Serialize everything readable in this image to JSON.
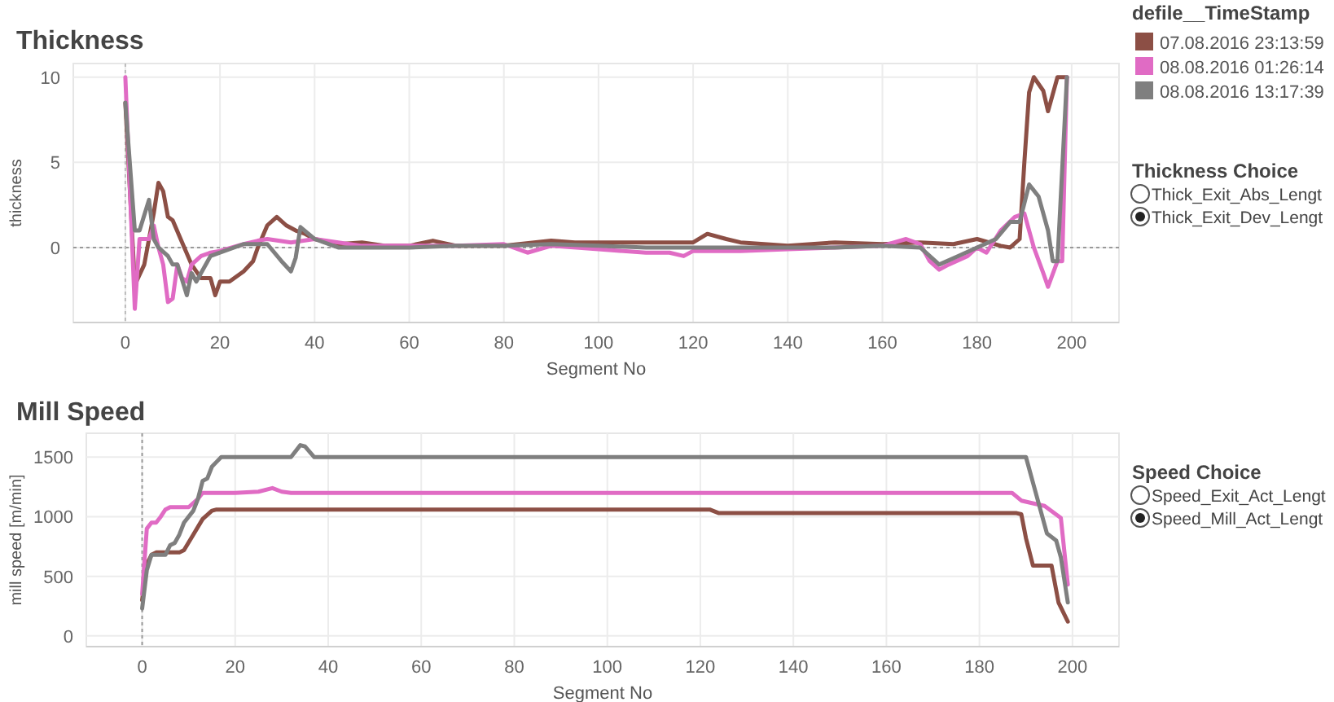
{
  "chart_data": [
    {
      "type": "line",
      "title": "Thickness",
      "xlabel": "Segment No",
      "ylabel": "thickness",
      "legend_title": "defile__TimeStamp",
      "legend": "top right",
      "grid": true,
      "line_style": "solid",
      "marker": "none",
      "xlim": [
        -11,
        210
      ],
      "xticks": [
        0,
        20,
        40,
        60,
        80,
        100,
        120,
        140,
        160,
        180,
        200
      ],
      "ylim": [
        -4.4,
        10.8
      ],
      "yticks": [
        0,
        5,
        10
      ],
      "ref_lines": [
        {
          "axis": "y",
          "value": 0,
          "color": "#999999",
          "line_style": "dotted"
        },
        {
          "axis": "x",
          "value": 0,
          "color": "#bbbbbb",
          "line_style": "dotted"
        }
      ],
      "annotations": [
        "Thickness Choice",
        "Thick_Exit_Abs_Lengt",
        "Thick_Exit_Dev_Lengt"
      ],
      "series": [
        {
          "name": "07.08.2016 23:13:59",
          "color": "#8c4f45",
          "x": [
            0,
            2,
            4,
            6,
            7,
            8,
            9,
            10,
            12,
            14,
            16,
            18,
            19,
            20,
            22,
            25,
            27,
            28,
            30,
            32,
            34,
            36,
            38,
            40,
            45,
            50,
            55,
            60,
            65,
            70,
            80,
            90,
            95,
            100,
            110,
            120,
            123,
            127,
            130,
            140,
            150,
            160,
            168,
            175,
            180,
            185,
            187,
            189,
            190,
            191,
            192,
            194,
            195,
            197,
            199
          ],
          "values": [
            8.5,
            -2.2,
            -1,
            2,
            3.8,
            3.3,
            1.8,
            1.6,
            0.3,
            -1,
            -1.8,
            -1.8,
            -2.8,
            -2,
            -2,
            -1.4,
            -0.8,
            0,
            1.3,
            1.8,
            1.3,
            1,
            0.8,
            0.5,
            0.2,
            0.3,
            0.1,
            0.1,
            0.4,
            0.1,
            0.1,
            0.4,
            0.3,
            0.3,
            0.3,
            0.3,
            0.8,
            0.5,
            0.3,
            0.1,
            0.3,
            0.2,
            0.3,
            0.2,
            0.5,
            0.1,
            0,
            0.5,
            5,
            9.1,
            10,
            9.2,
            8,
            10,
            10
          ]
        },
        {
          "name": "08.08.2016 01:26:14",
          "color": "#e06bc4",
          "x": [
            0,
            2,
            3,
            5,
            6,
            7,
            8,
            9,
            10,
            11,
            12,
            13,
            14,
            16,
            18,
            20,
            25,
            28,
            30,
            35,
            40,
            50,
            60,
            70,
            80,
            85,
            90,
            100,
            110,
            115,
            118,
            120,
            130,
            140,
            160,
            165,
            168,
            170,
            172,
            174,
            178,
            180,
            182,
            185,
            188,
            190,
            192,
            194,
            195,
            197,
            198,
            199
          ],
          "values": [
            10,
            -3.6,
            0.5,
            0.5,
            1.3,
            0,
            -1,
            -3.2,
            -3,
            -1,
            -1.8,
            -2,
            -1,
            -0.5,
            -0.3,
            -0.2,
            0.2,
            0.4,
            0.5,
            0.3,
            0.5,
            0.1,
            0.1,
            0.1,
            0.2,
            -0.3,
            0.1,
            -0.1,
            -0.3,
            -0.3,
            -0.5,
            -0.2,
            -0.2,
            -0.1,
            0.1,
            0.5,
            0.2,
            -0.8,
            -1.3,
            -1,
            -0.5,
            0,
            -0.3,
            1,
            1.8,
            2,
            0,
            -1.5,
            -2.3,
            -0.8,
            -0.8,
            10
          ]
        },
        {
          "name": "08.08.2016 13:17:39",
          "color": "#7f7f7f",
          "x": [
            0,
            2,
            3,
            5,
            6,
            7,
            9,
            10,
            11,
            13,
            14,
            15,
            16,
            18,
            20,
            25,
            28,
            30,
            33,
            35,
            36,
            37,
            40,
            45,
            50,
            60,
            70,
            80,
            90,
            100,
            110,
            120,
            130,
            140,
            150,
            160,
            168,
            172,
            176,
            180,
            184,
            187,
            189,
            191,
            193,
            195,
            196,
            197,
            199
          ],
          "values": [
            8.5,
            1,
            1,
            2.8,
            0.5,
            0,
            -0.5,
            -1,
            -1,
            -2.8,
            -1.5,
            -2,
            -1.5,
            -0.5,
            -0.3,
            0.2,
            0.2,
            0.2,
            -0.8,
            -1.4,
            -0.6,
            1.2,
            0.5,
            0,
            0,
            0,
            0.1,
            0.1,
            0.2,
            0.1,
            0,
            0,
            0,
            0,
            0,
            0.1,
            0,
            -1,
            -0.5,
            0,
            0.5,
            1.5,
            1.5,
            3.7,
            3,
            1,
            -0.8,
            -0.8,
            10
          ]
        }
      ]
    },
    {
      "type": "line",
      "title": "Mill Speed",
      "xlabel": "Segment No",
      "ylabel": "mill speed [m/min]",
      "grid": true,
      "line_style": "solid",
      "marker": "none",
      "xlim": [
        -12,
        210
      ],
      "xticks": [
        0,
        20,
        40,
        60,
        80,
        100,
        120,
        140,
        160,
        180,
        200
      ],
      "ylim": [
        -90,
        1700
      ],
      "yticks": [
        0,
        500,
        1000,
        1500
      ],
      "ref_lines": [
        {
          "axis": "x",
          "value": 0,
          "color": "#999999",
          "line_style": "dotted"
        }
      ],
      "annotations": [
        "Speed Choice",
        "Speed_Exit_Act_Lengt",
        "Speed_Mill_Act_Lengt"
      ],
      "series": [
        {
          "color": "#8c4f45",
          "x": [
            0,
            1,
            2,
            3,
            5,
            8,
            9,
            11,
            13,
            15,
            16,
            120,
            122,
            124,
            188,
            189,
            190,
            191.5,
            195.5,
            197,
            199
          ],
          "values": [
            300,
            600,
            680,
            700,
            700,
            700,
            720,
            850,
            980,
            1050,
            1060,
            1060,
            1060,
            1030,
            1030,
            1020,
            820,
            590,
            590,
            280,
            120
          ]
        },
        {
          "color": "#e06bc4",
          "x": [
            0,
            1,
            2,
            3,
            4,
            5,
            6,
            10,
            12,
            13,
            20,
            25,
            28,
            30,
            32,
            180,
            187,
            189,
            194,
            197.5,
            199
          ],
          "values": [
            350,
            900,
            950,
            950,
            1000,
            1060,
            1080,
            1080,
            1150,
            1200,
            1200,
            1210,
            1240,
            1210,
            1200,
            1200,
            1200,
            1135,
            1090,
            990,
            430
          ]
        },
        {
          "color": "#7f7f7f",
          "x": [
            0,
            1,
            2,
            5,
            6,
            7,
            8,
            9,
            11,
            12,
            13,
            14,
            15,
            16,
            17,
            32,
            34,
            35,
            37,
            190,
            194.5,
            196.5,
            197.5,
            199
          ],
          "values": [
            230,
            550,
            680,
            680,
            760,
            780,
            850,
            950,
            1050,
            1150,
            1300,
            1320,
            1420,
            1460,
            1500,
            1500,
            1600,
            1590,
            1500,
            1500,
            860,
            800,
            660,
            280
          ]
        }
      ]
    }
  ]
}
